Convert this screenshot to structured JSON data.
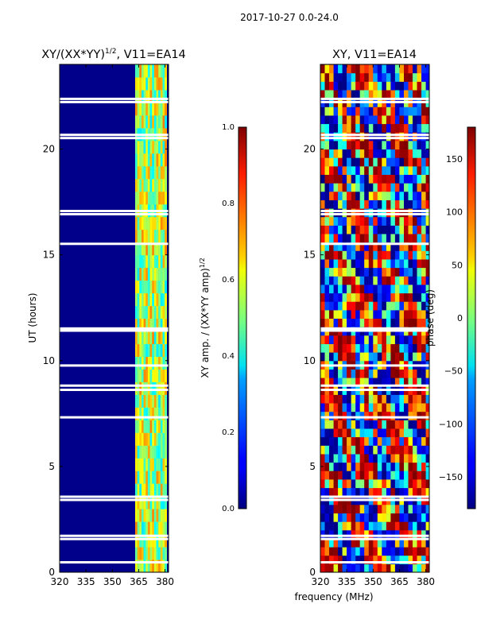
{
  "figure_title": "2017-10-27 0.0-24.0",
  "chart_data": [
    {
      "type": "heatmap",
      "title": "XY/(XX*YY)",
      "title_sup": "1/2",
      "title_suffix": ", V11=EA14",
      "xlabel": "",
      "ylabel": "UT (hours)",
      "xlim": [
        320,
        382
      ],
      "ylim": [
        0,
        24
      ],
      "xticks": [
        320,
        335,
        350,
        365,
        380
      ],
      "yticks": [
        0,
        5,
        10,
        15,
        20
      ],
      "colormap": "jet",
      "colorbar": {
        "label": "XY amp. / (XX*YY amp)",
        "label_sup": "1/2",
        "range": [
          0.0,
          1.0
        ],
        "ticks": [
          "0.0",
          "0.2",
          "0.4",
          "0.6",
          "0.8",
          "1.0"
        ]
      },
      "description_band_mhz": [
        363,
        380
      ]
    },
    {
      "type": "heatmap",
      "title": "XY, V11=EA14",
      "xlabel": "frequency (MHz)",
      "ylabel": "",
      "xlim": [
        320,
        382
      ],
      "ylim": [
        0,
        24
      ],
      "xticks": [
        320,
        335,
        350,
        365,
        380
      ],
      "yticks": [
        0,
        5,
        10,
        15,
        20
      ],
      "colormap": "jet",
      "colorbar": {
        "label": "phase (deg)",
        "range": [
          -180,
          180
        ],
        "ticks": [
          "150",
          "100",
          "50",
          "0",
          "−50",
          "−100",
          "−150"
        ],
        "tick_values": [
          150,
          100,
          50,
          0,
          -50,
          -100,
          -150
        ]
      }
    }
  ],
  "flagged_rows_ut": [
    0.45,
    1.55,
    1.7,
    3.4,
    3.55,
    7.3,
    8.6,
    8.8,
    9.75,
    11.4,
    11.5,
    15.5,
    16.9,
    17.05,
    20.5,
    20.65,
    22.2,
    22.35
  ]
}
